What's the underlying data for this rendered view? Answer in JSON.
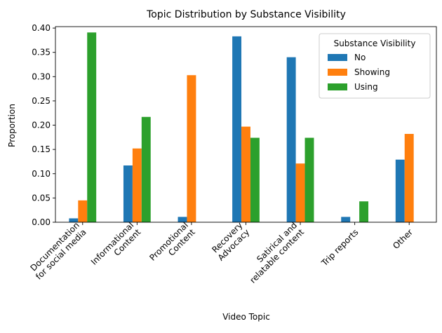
{
  "chart_data": {
    "type": "bar",
    "title": "Topic Distribution by Substance Visibility",
    "xlabel": "Video Topic",
    "ylabel": "Proportion",
    "ylim": [
      0,
      0.403
    ],
    "yticks": [
      0.0,
      0.05,
      0.1,
      0.15,
      0.2,
      0.25,
      0.3,
      0.35,
      0.4
    ],
    "ytick_labels": [
      "0.00",
      "0.05",
      "0.10",
      "0.15",
      "0.20",
      "0.25",
      "0.30",
      "0.35",
      "0.40"
    ],
    "categories": [
      "Documentation for social media",
      "Informational Content",
      "Promotional Content",
      "Recovery Advocacy",
      "Satirical and relatable content",
      "Trip reports",
      "Other"
    ],
    "category_label_lines": [
      [
        "Documentation",
        "for social media"
      ],
      [
        "Informational",
        "Content"
      ],
      [
        "Promotional",
        "Content"
      ],
      [
        "Recovery",
        "Advocacy"
      ],
      [
        "Satirical and",
        "relatable content"
      ],
      [
        "Trip reports"
      ],
      [
        "Other"
      ]
    ],
    "series": [
      {
        "name": "No",
        "color": "#1f77b4",
        "values": [
          0.008,
          0.117,
          0.011,
          0.383,
          0.34,
          0.011,
          0.129
        ]
      },
      {
        "name": "Showing",
        "color": "#ff7f0e",
        "values": [
          0.045,
          0.152,
          0.303,
          0.197,
          0.121,
          0.0,
          0.182
        ]
      },
      {
        "name": "Using",
        "color": "#2ca02c",
        "values": [
          0.391,
          0.217,
          0.0,
          0.174,
          0.174,
          0.043,
          0.0
        ]
      }
    ],
    "legend": {
      "title": "Substance Visibility",
      "placement": "top-right"
    },
    "grid": false
  }
}
